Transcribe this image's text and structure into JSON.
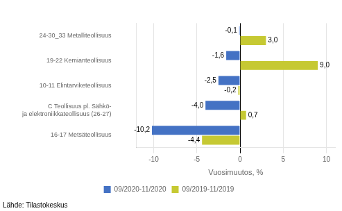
{
  "chart_data": {
    "type": "bar",
    "orientation": "horizontal",
    "categories": [
      "16-17 Metsäteollisuus",
      "C Teollisuus pl. Sähkö-\nja elektroniikkateollisuus (26-27)",
      "10-11 Elintarviketeollisuus",
      "19-22 Kemianteollisuus",
      "24-30_33 Metalliteollisuus"
    ],
    "series": [
      {
        "name": "09/2020-11/2020",
        "color": "#4472c4",
        "values": [
          -10.2,
          -4.0,
          -2.5,
          -1.6,
          -0.1
        ],
        "value_labels": [
          "-10,2",
          "-4,0",
          "-2,5",
          "-1,6",
          "-0,1"
        ]
      },
      {
        "name": "09/2019-11/2019",
        "color": "#c6c933",
        "values": [
          -4.4,
          0.7,
          -0.2,
          9.0,
          3.0
        ],
        "value_labels": [
          "-4,4",
          "0,7",
          "-0,2",
          "9,0",
          "3,0"
        ]
      }
    ],
    "xlabel": "Vuosimuutos, %",
    "xlim": [
      -12,
      11
    ],
    "xticks": [
      -10,
      -5,
      0,
      5,
      10
    ],
    "grid": true,
    "legend": "bottom",
    "data_labels": true,
    "annotations": [
      "Lähde: Tilastokeskus"
    ]
  }
}
